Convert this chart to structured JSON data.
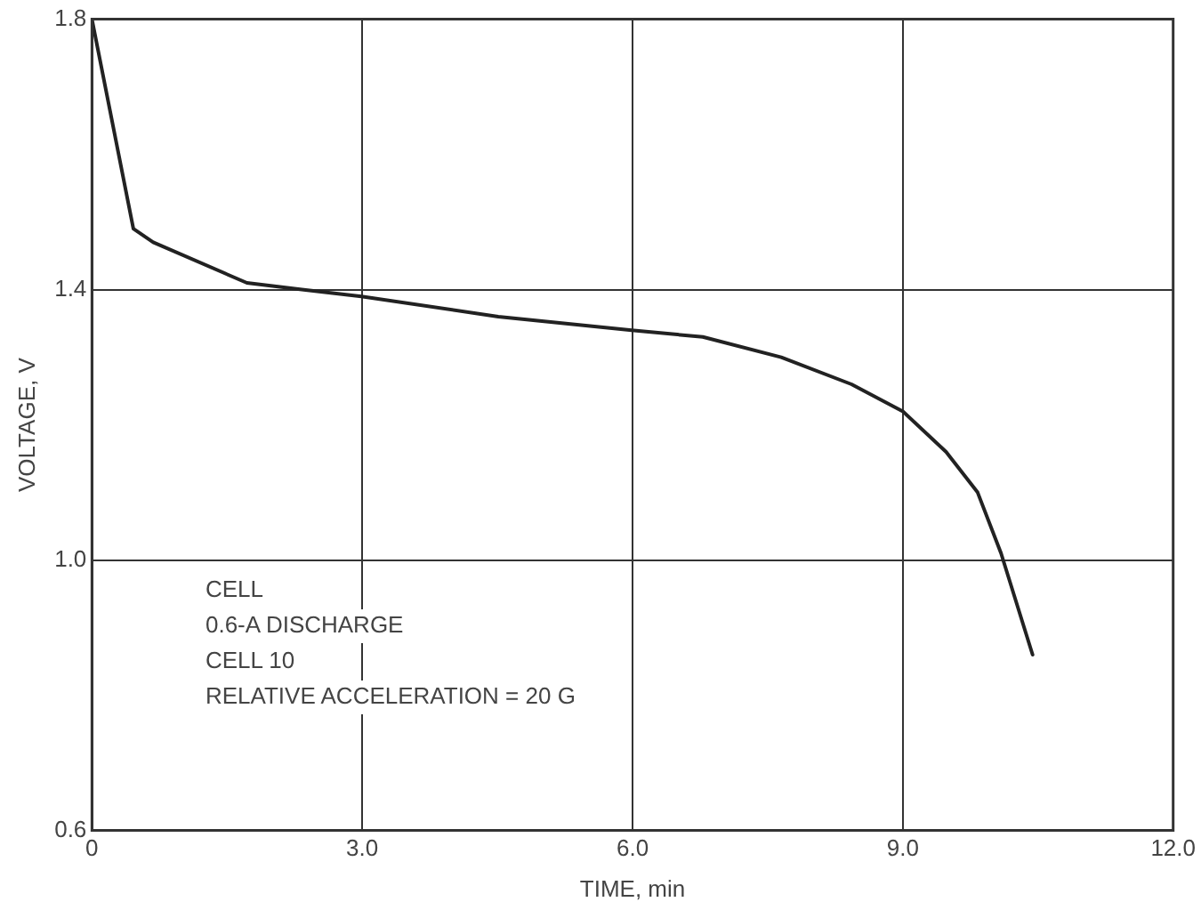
{
  "chart_data": {
    "type": "line",
    "xlabel": "TIME, min",
    "ylabel": "VOLTAGE, V",
    "x": [
      0,
      0.46,
      0.68,
      1.72,
      2.33,
      2.99,
      4.51,
      5.99,
      6.78,
      7.65,
      8.43,
      9.0,
      9.48,
      9.83,
      10.09,
      10.44
    ],
    "series": [
      {
        "color": "#222222",
        "values": [
          1.8,
          1.49,
          1.47,
          1.41,
          1.4,
          1.39,
          1.36,
          1.34,
          1.33,
          1.3,
          1.26,
          1.22,
          1.16,
          1.1,
          1.01,
          0.86
        ]
      }
    ],
    "xlim": [
      0,
      12
    ],
    "xticks": [
      0,
      {
        "value": 3,
        "label": "3.0"
      },
      {
        "value": 6,
        "label": "6.0"
      },
      {
        "value": 9,
        "label": "9.0"
      },
      {
        "value": 12,
        "label": "12.0"
      }
    ],
    "ylim": [
      0.6,
      1.8
    ],
    "yticks": [
      0.6,
      {
        "value": 1,
        "label": "1.0"
      },
      1.4,
      1.8
    ],
    "grid": true,
    "legend": false,
    "marker": "none",
    "line_style": "solid",
    "annotations": [
      "CELL",
      "0.6-A DISCHARGE",
      "CELL 10",
      "RELATIVE ACCELERATION = 20 G"
    ]
  }
}
